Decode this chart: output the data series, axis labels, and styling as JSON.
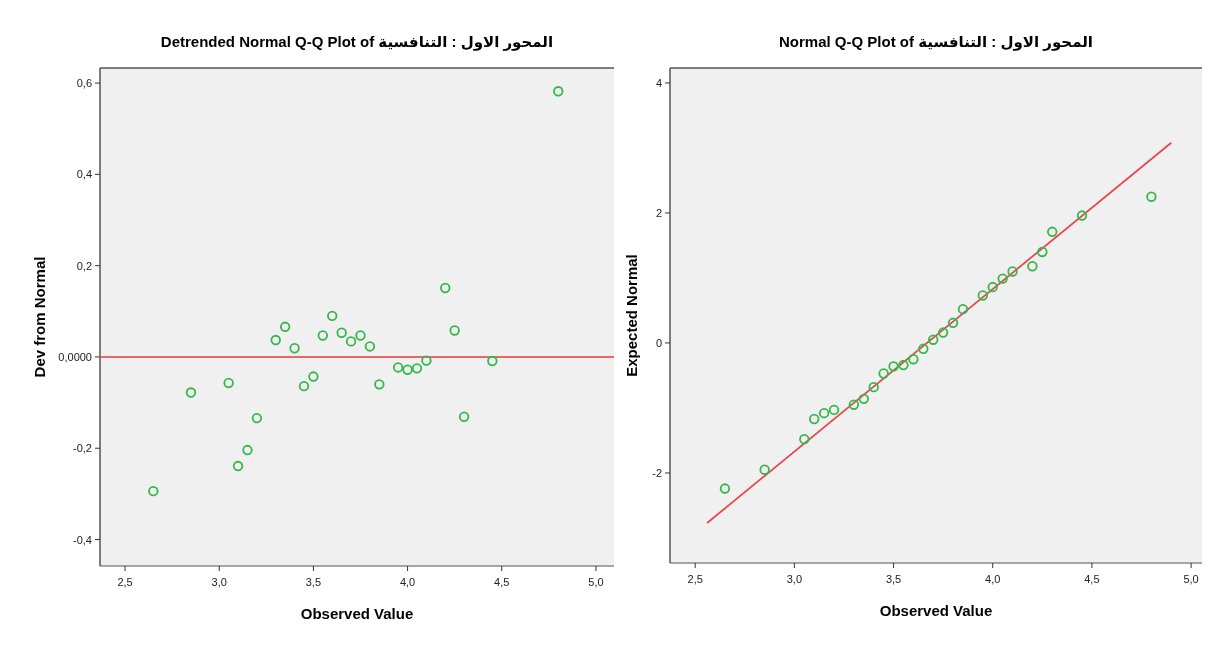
{
  "chart_data": [
    {
      "type": "scatter",
      "title": "Detrended Normal Q-Q Plot of المحور الاول : التنافسية",
      "xlabel": "Observed Value",
      "ylabel": "Dev from Normal",
      "marker": "circle",
      "color": "#35b84b",
      "x": [
        2.65,
        2.85,
        3.05,
        3.1,
        3.15,
        3.2,
        3.3,
        3.35,
        3.4,
        3.45,
        3.5,
        3.55,
        3.6,
        3.65,
        3.7,
        3.75,
        3.8,
        3.85,
        3.95,
        4.0,
        4.05,
        4.1,
        4.2,
        4.25,
        4.3,
        4.45,
        4.8
      ],
      "values": [
        -0.294,
        -0.078,
        -0.057,
        -0.239,
        -0.204,
        -0.134,
        0.037,
        0.066,
        0.019,
        -0.064,
        -0.043,
        0.047,
        0.09,
        0.053,
        0.034,
        0.047,
        0.023,
        -0.06,
        -0.023,
        -0.028,
        -0.025,
        -0.008,
        0.151,
        0.058,
        -0.131,
        -0.009,
        0.582
      ],
      "xlim": [
        2.367,
        5.096
      ],
      "ylim": [
        -0.458,
        0.633
      ],
      "xticks": [
        {
          "value": 2.5,
          "label": "2,5"
        },
        {
          "value": 3.0,
          "label": "3,0"
        },
        {
          "value": 3.5,
          "label": "3,5"
        },
        {
          "value": 4.0,
          "label": "4,0"
        },
        {
          "value": 4.5,
          "label": "4,5"
        },
        {
          "value": 5.0,
          "label": "5,0"
        }
      ],
      "yticks": [
        {
          "value": -0.4,
          "label": "-0,4"
        },
        {
          "value": -0.2,
          "label": "-0,2"
        },
        {
          "value": 0,
          "label": "0,0000"
        },
        {
          "value": 0.2,
          "label": "0,2"
        },
        {
          "value": 0.4,
          "label": "0,4"
        },
        {
          "value": 0.6,
          "label": "0,6"
        }
      ],
      "ref_lines": [
        {
          "axis": "y",
          "value": 0,
          "color": "#e8666a"
        }
      ]
    },
    {
      "type": "scatter",
      "title": "Normal Q-Q Plot of المحور الاول : التنافسية",
      "xlabel": "Observed Value",
      "ylabel": "Expected Normal",
      "series": [
        {
          "color": "#35b84b",
          "marker": "circle",
          "x": [
            2.65,
            2.85,
            3.05,
            3.1,
            3.15,
            3.2,
            3.3,
            3.35,
            3.4,
            3.45,
            3.5,
            3.55,
            3.6,
            3.65,
            3.7,
            3.75,
            3.8,
            3.85,
            3.95,
            4.0,
            4.05,
            4.1,
            4.2,
            4.25,
            4.3,
            4.45,
            4.8
          ],
          "values": [
            -2.24,
            -1.95,
            -1.48,
            -1.17,
            -1.08,
            -1.03,
            -0.95,
            -0.86,
            -0.68,
            -0.47,
            -0.36,
            -0.34,
            -0.25,
            -0.09,
            0.05,
            0.16,
            0.31,
            0.52,
            0.73,
            0.86,
            0.99,
            1.1,
            1.18,
            1.4,
            1.71,
            1.96,
            2.25
          ]
        },
        {
          "type": "line",
          "color": "#e8484c",
          "x": [
            2.56,
            4.9
          ],
          "values": [
            -2.77,
            3.08
          ]
        }
      ],
      "xlim": [
        2.373,
        5.055
      ],
      "ylim": [
        -3.385,
        4.23
      ],
      "xticks": [
        {
          "value": 2.5,
          "label": "2,5"
        },
        {
          "value": 3.0,
          "label": "3,0"
        },
        {
          "value": 3.5,
          "label": "3,5"
        },
        {
          "value": 4.0,
          "label": "4,0"
        },
        {
          "value": 4.5,
          "label": "4,5"
        },
        {
          "value": 5.0,
          "label": "5,0"
        }
      ],
      "yticks": [
        -2,
        0,
        2,
        4
      ]
    }
  ]
}
